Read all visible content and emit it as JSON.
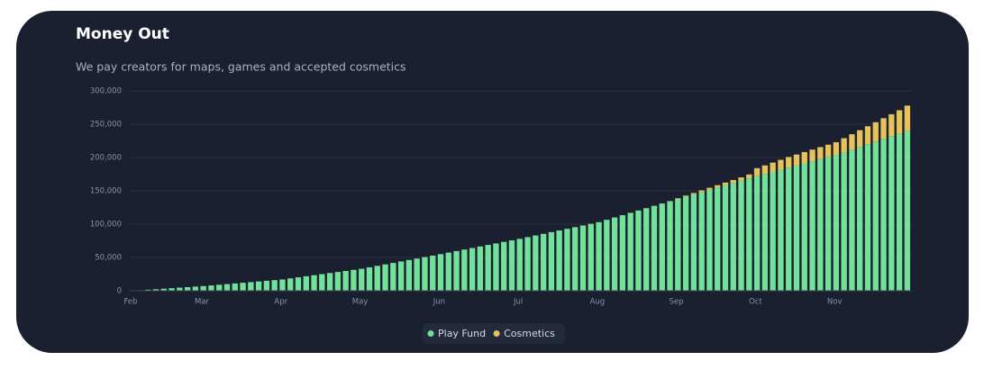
{
  "chart_data": {
    "type": "stacked_bar",
    "title": "Money Out",
    "subtitle": "We pay creators for maps, games and accepted cosmetics",
    "categories": [
      "Feb",
      null,
      null,
      null,
      null,
      null,
      null,
      null,
      null,
      "Mar",
      null,
      null,
      null,
      null,
      null,
      null,
      null,
      null,
      null,
      "Apr",
      null,
      null,
      null,
      null,
      null,
      null,
      null,
      null,
      null,
      "May",
      null,
      null,
      null,
      null,
      null,
      null,
      null,
      null,
      null,
      "Jun",
      null,
      null,
      null,
      null,
      null,
      null,
      null,
      null,
      null,
      "Jul",
      null,
      null,
      null,
      null,
      null,
      null,
      null,
      null,
      null,
      "Aug",
      null,
      null,
      null,
      null,
      null,
      null,
      null,
      null,
      null,
      "Sep",
      null,
      null,
      null,
      null,
      null,
      null,
      null,
      null,
      null,
      "Oct",
      null,
      null,
      null,
      null,
      null,
      null,
      null,
      null,
      null,
      "Nov",
      null,
      null,
      null,
      null,
      null,
      null,
      null,
      null,
      null
    ],
    "series": [
      {
        "name": "Play Fund",
        "color": "#72e29a",
        "values": [
          0,
          800,
          1600,
          2300,
          3100,
          3900,
          4700,
          5400,
          6200,
          7000,
          8000,
          9000,
          10000,
          11000,
          12000,
          13000,
          14000,
          15000,
          16000,
          17000,
          18600,
          20200,
          21800,
          23400,
          25000,
          26600,
          28200,
          29800,
          31400,
          33000,
          35200,
          37400,
          39600,
          41800,
          44000,
          46200,
          48400,
          50600,
          52800,
          55000,
          57300,
          59600,
          61900,
          64200,
          66500,
          68800,
          71100,
          73400,
          75700,
          78000,
          80500,
          83000,
          85500,
          88000,
          90500,
          93000,
          95500,
          98000,
          100500,
          103000,
          106500,
          110000,
          113500,
          117000,
          120500,
          124000,
          127500,
          131000,
          134500,
          138000,
          141400,
          144800,
          148200,
          151600,
          155000,
          158400,
          161800,
          165200,
          168600,
          172000,
          175200,
          178400,
          181600,
          184800,
          188000,
          191200,
          194400,
          197600,
          200800,
          204000,
          208000,
          212000,
          216000,
          220000,
          224000,
          228000,
          232000,
          236000,
          240000
        ]
      },
      {
        "name": "Cosmetics",
        "color": "#e6c35a",
        "values": [
          0,
          0,
          0,
          0,
          0,
          0,
          0,
          0,
          0,
          0,
          0,
          0,
          0,
          0,
          0,
          0,
          0,
          0,
          0,
          0,
          0,
          0,
          0,
          0,
          0,
          0,
          0,
          0,
          0,
          0,
          0,
          0,
          0,
          0,
          0,
          0,
          0,
          0,
          0,
          0,
          0,
          0,
          0,
          0,
          0,
          0,
          0,
          0,
          0,
          0,
          0,
          0,
          0,
          0,
          0,
          0,
          0,
          0,
          0,
          0,
          0,
          0,
          0,
          0,
          0,
          0,
          0,
          0,
          0,
          1000,
          1500,
          2000,
          2500,
          3000,
          3500,
          4000,
          4500,
          5000,
          6000,
          12000,
          13000,
          14000,
          15000,
          16000,
          16500,
          17000,
          17500,
          18000,
          18500,
          19000,
          21000,
          23000,
          25000,
          27000,
          29000,
          31000,
          33000,
          35000,
          38000
        ]
      }
    ],
    "ylim": [
      0,
      300000
    ],
    "yticks": [
      0,
      {
        "value": 50000,
        "label": "50,000"
      },
      {
        "value": 100000,
        "label": "100,000"
      },
      {
        "value": 150000,
        "label": "150,000"
      },
      {
        "value": 200000,
        "label": "200,000"
      },
      {
        "value": 250000,
        "label": "250,000"
      },
      {
        "value": 300000,
        "label": "300,000"
      }
    ],
    "grid": true
  }
}
